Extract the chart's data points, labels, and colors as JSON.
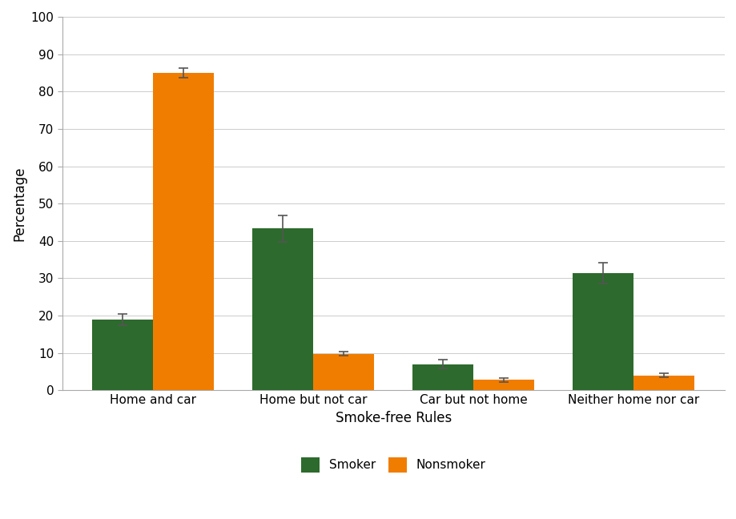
{
  "categories": [
    "Home and car",
    "Home but not car",
    "Car but not home",
    "Neither home nor car"
  ],
  "smoker_values": [
    19.0,
    43.3,
    7.0,
    31.3
  ],
  "nonsmoker_values": [
    85.0,
    9.8,
    2.8,
    4.0
  ],
  "smoker_errors": [
    1.5,
    3.5,
    1.2,
    2.8
  ],
  "nonsmoker_errors": [
    1.2,
    0.5,
    0.5,
    0.5
  ],
  "smoker_color": "#2d6a2d",
  "nonsmoker_color": "#f07d00",
  "xlabel": "Smoke-free Rules",
  "ylabel": "Percentage",
  "ylim": [
    0,
    100
  ],
  "yticks": [
    0,
    10,
    20,
    30,
    40,
    50,
    60,
    70,
    80,
    90,
    100
  ],
  "legend_labels": [
    "Smoker",
    "Nonsmoker"
  ],
  "bar_width": 0.38,
  "background_color": "#ffffff",
  "label_fontsize": 12,
  "tick_fontsize": 11,
  "legend_fontsize": 11,
  "ecolor": "#555555",
  "capsize": 4
}
